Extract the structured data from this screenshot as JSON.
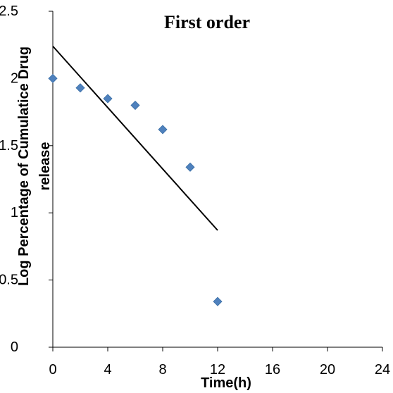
{
  "chart_data": {
    "type": "scatter",
    "title": "First order",
    "xlabel": "Time(h)",
    "ylabel_lines": [
      "Log Percentage of Cumulatice Drug",
      "release"
    ],
    "xlim": [
      0,
      24
    ],
    "ylim": [
      0,
      2.5
    ],
    "x_ticks": [
      "0",
      "4",
      "8",
      "12",
      "16",
      "20",
      "24"
    ],
    "y_ticks": [
      "0",
      "0.5",
      "1",
      "1.5",
      "2",
      "2.5"
    ],
    "grid": false,
    "legend": "none",
    "marker_color": "#4f81bd",
    "line_color": "#000000",
    "series": [
      {
        "x": [
          0,
          2,
          4,
          6,
          8,
          10,
          12
        ],
        "y": [
          2.0,
          1.93,
          1.85,
          1.8,
          1.62,
          1.34,
          0.34
        ]
      }
    ],
    "trendline": {
      "x": [
        0,
        12
      ],
      "y": [
        2.24,
        0.87
      ]
    }
  }
}
